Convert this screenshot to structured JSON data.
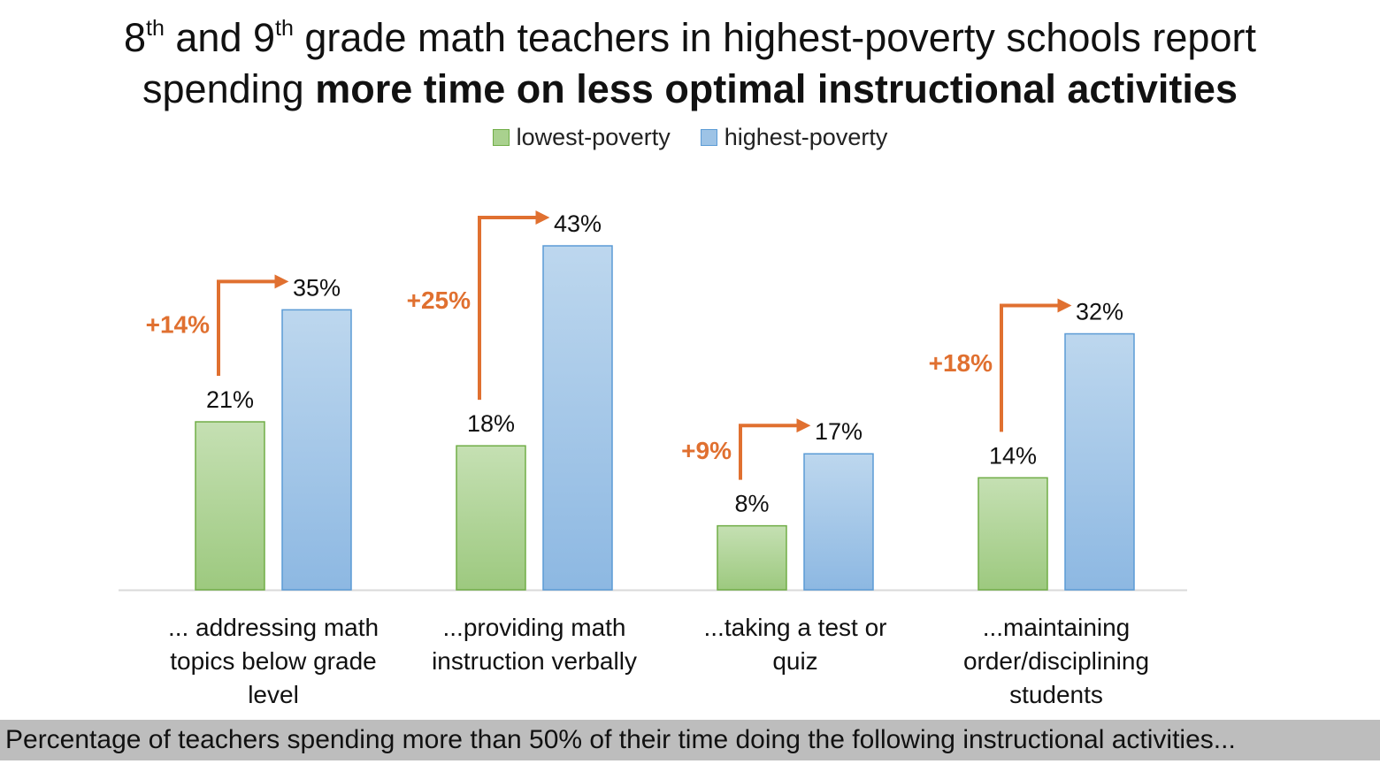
{
  "title": {
    "line1_a": "8",
    "line1_sup1": "th",
    "line1_b": " and 9",
    "line1_sup2": "th",
    "line1_c": " grade math teachers in highest-poverty schools report",
    "line2_a": "spending ",
    "line2_bold": "more time on less optimal instructional activities"
  },
  "caption": "Percentage of teachers spending more than 50% of their time doing the following instructional activities...",
  "colors": {
    "lowest_fill": "#a9d18e",
    "lowest_stroke": "#70ad47",
    "highest_fill": "#9dc3e6",
    "highest_stroke": "#5b9bd5",
    "arrow": "#e07030",
    "axis": "#d9d9d9"
  },
  "chart_data": {
    "type": "bar",
    "title": "",
    "xlabel": "",
    "ylabel": "",
    "ylim": [
      0,
      43
    ],
    "grid": false,
    "legend_position": "top",
    "categories": [
      [
        "... addressing math",
        "topics below grade",
        "level"
      ],
      [
        "...providing math",
        "instruction verbally"
      ],
      [
        "...taking a test or",
        "quiz"
      ],
      [
        "...maintaining",
        "order/disciplining",
        "students"
      ]
    ],
    "series": [
      {
        "name": "lowest-poverty",
        "values": [
          21,
          18,
          8,
          14
        ],
        "labels": [
          "21%",
          "18%",
          "8%",
          "14%"
        ]
      },
      {
        "name": "highest-poverty",
        "values": [
          35,
          43,
          17,
          32
        ],
        "labels": [
          "35%",
          "43%",
          "17%",
          "32%"
        ]
      }
    ],
    "annotations": [
      {
        "category_index": 0,
        "text": "+14%"
      },
      {
        "category_index": 1,
        "text": "+25%"
      },
      {
        "category_index": 2,
        "text": "+9%"
      },
      {
        "category_index": 3,
        "text": "+18%"
      }
    ]
  }
}
